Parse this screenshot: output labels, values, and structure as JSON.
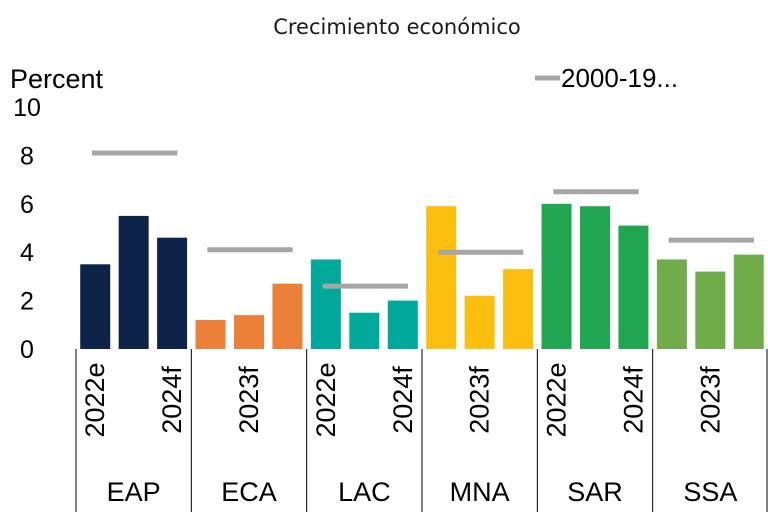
{
  "chart_data": {
    "type": "bar",
    "title": "Crecimiento económico",
    "ylabel": "Percent",
    "ylim": [
      0,
      10
    ],
    "yticks": [
      0,
      2,
      4,
      6,
      8,
      10
    ],
    "legend": {
      "label": "2000-19...",
      "position": "top-right"
    },
    "groups": [
      {
        "region": "EAP",
        "color": "#0d2448",
        "values": [
          3.5,
          5.5,
          4.6
        ],
        "avg": 8.1
      },
      {
        "region": "ECA",
        "color": "#ec8038",
        "values": [
          1.2,
          1.4,
          2.7
        ],
        "avg": 4.1
      },
      {
        "region": "LAC",
        "color": "#00a99a",
        "values": [
          3.7,
          1.5,
          2.0
        ],
        "avg": 2.6
      },
      {
        "region": "MNA",
        "color": "#fcbf10",
        "values": [
          5.9,
          2.2,
          3.3
        ],
        "avg": 4.0
      },
      {
        "region": "SAR",
        "color": "#21a652",
        "values": [
          6.0,
          5.9,
          5.1
        ],
        "avg": 6.5
      },
      {
        "region": "SSA",
        "color": "#71ac4a",
        "values": [
          3.7,
          3.2,
          3.9
        ],
        "avg": 4.5
      }
    ],
    "period_labels": [
      "2022e",
      "2023f",
      "2024f"
    ],
    "visible_period_labels": [
      [
        "2022e",
        "2024f"
      ],
      [
        "2023f"
      ],
      [
        "2022e",
        "2024f"
      ],
      [
        "2023f"
      ],
      [
        "2022e",
        "2024f"
      ],
      [
        "2023f"
      ]
    ],
    "avg_line_color": "#a6a6a6"
  }
}
